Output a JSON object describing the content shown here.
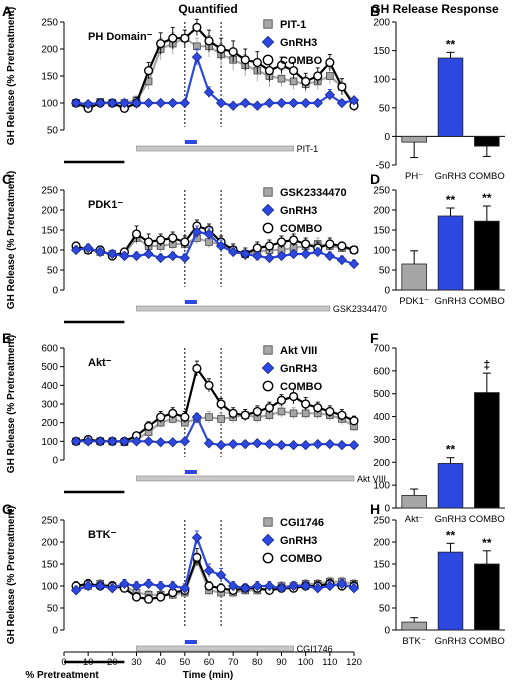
{
  "header": {
    "left_title": "Quantified",
    "right_title": "GH Release Response"
  },
  "shared": {
    "ylabel": "GH Release (% Pretreatment)",
    "xlabel": "Time (min)",
    "pretreatment_label": "% Pretreatment",
    "dotted_lines_min": [
      50,
      65
    ],
    "colors": {
      "gray": "#a6a6a6",
      "blue": "#2d48e0",
      "black": "#000000",
      "white": "#ffffff"
    }
  },
  "chart_data": [
    {
      "panel": "A",
      "type": "line",
      "inset_label": "PH Domain⁻",
      "xlim": [
        0,
        120
      ],
      "ylim": [
        50,
        250
      ],
      "yticks": [
        50,
        100,
        150,
        200,
        250
      ],
      "xticks": [
        0,
        10,
        20,
        30,
        40,
        50,
        60,
        70,
        80,
        90,
        100,
        110,
        120
      ],
      "x": [
        5,
        10,
        15,
        20,
        25,
        30,
        35,
        40,
        45,
        50,
        55,
        60,
        65,
        70,
        75,
        80,
        85,
        90,
        95,
        100,
        105,
        110,
        115,
        120
      ],
      "series": [
        {
          "name": "PIT-1",
          "marker": "square",
          "values": [
            100,
            95,
            102,
            100,
            100,
            105,
            140,
            200,
            210,
            220,
            205,
            205,
            190,
            180,
            170,
            160,
            150,
            145,
            140,
            135,
            140,
            150,
            130,
            100
          ],
          "err": [
            5,
            5,
            5,
            5,
            5,
            8,
            15,
            20,
            20,
            15,
            15,
            20,
            20,
            20,
            20,
            20,
            20,
            15,
            15,
            15,
            15,
            15,
            15,
            10
          ]
        },
        {
          "name": "GnRH3",
          "marker": "diamond",
          "values": [
            100,
            98,
            100,
            100,
            100,
            100,
            100,
            100,
            100,
            100,
            185,
            120,
            100,
            95,
            100,
            95,
            100,
            100,
            100,
            100,
            100,
            115,
            100,
            105
          ],
          "err": [
            5,
            5,
            5,
            5,
            5,
            5,
            5,
            5,
            5,
            5,
            15,
            10,
            5,
            5,
            5,
            5,
            5,
            5,
            5,
            5,
            5,
            10,
            5,
            5
          ]
        },
        {
          "name": "COMBO",
          "marker": "circle",
          "values": [
            100,
            90,
            100,
            100,
            90,
            100,
            160,
            210,
            220,
            220,
            240,
            215,
            200,
            195,
            180,
            175,
            160,
            170,
            160,
            140,
            150,
            175,
            130,
            95
          ],
          "err": [
            5,
            5,
            5,
            5,
            5,
            10,
            15,
            20,
            20,
            15,
            15,
            20,
            20,
            20,
            20,
            20,
            20,
            15,
            15,
            15,
            15,
            15,
            15,
            10
          ]
        }
      ],
      "bar_label": "PIT-1",
      "bar_range": [
        30,
        95
      ],
      "blue_bar_range": [
        50,
        55
      ]
    },
    {
      "panel": "C",
      "type": "line",
      "inset_label": "PDK1⁻",
      "xlim": [
        0,
        120
      ],
      "ylim": [
        0,
        250
      ],
      "yticks": [
        0,
        50,
        100,
        150,
        200,
        250
      ],
      "xticks": [
        0,
        10,
        20,
        30,
        40,
        50,
        60,
        70,
        80,
        90,
        100,
        110,
        120
      ],
      "x": [
        5,
        10,
        15,
        20,
        25,
        30,
        35,
        40,
        45,
        50,
        55,
        60,
        65,
        70,
        75,
        80,
        85,
        90,
        95,
        100,
        105,
        110,
        115,
        120
      ],
      "series": [
        {
          "name": "GSK2334470",
          "marker": "square",
          "values": [
            105,
            100,
            95,
            90,
            90,
            130,
            110,
            110,
            115,
            115,
            130,
            120,
            115,
            100,
            90,
            95,
            100,
            100,
            105,
            110,
            115,
            110,
            105,
            100
          ],
          "err": [
            10,
            10,
            10,
            10,
            10,
            15,
            15,
            15,
            15,
            15,
            15,
            15,
            15,
            15,
            10,
            10,
            10,
            10,
            10,
            15,
            15,
            15,
            10,
            10
          ]
        },
        {
          "name": "GnRH3",
          "marker": "diamond",
          "values": [
            100,
            105,
            95,
            90,
            85,
            85,
            90,
            80,
            85,
            80,
            145,
            140,
            110,
            95,
            90,
            85,
            80,
            85,
            90,
            90,
            95,
            85,
            75,
            65
          ],
          "err": [
            10,
            10,
            10,
            10,
            10,
            10,
            10,
            10,
            10,
            10,
            15,
            15,
            15,
            10,
            10,
            10,
            10,
            10,
            10,
            10,
            10,
            10,
            10,
            10
          ]
        },
        {
          "name": "COMBO",
          "marker": "circle",
          "values": [
            110,
            100,
            100,
            85,
            95,
            140,
            120,
            125,
            130,
            120,
            160,
            150,
            120,
            100,
            90,
            105,
            110,
            120,
            125,
            115,
            105,
            115,
            110,
            100
          ],
          "err": [
            10,
            10,
            10,
            10,
            10,
            20,
            20,
            15,
            15,
            15,
            15,
            15,
            15,
            15,
            15,
            15,
            15,
            15,
            15,
            15,
            15,
            15,
            10,
            10
          ]
        }
      ],
      "bar_label": "GSK2334470",
      "bar_range": [
        30,
        110
      ],
      "blue_bar_range": [
        50,
        55
      ]
    },
    {
      "panel": "E",
      "type": "line",
      "inset_label": "Akt⁻",
      "xlim": [
        0,
        120
      ],
      "ylim": [
        0,
        600
      ],
      "yticks": [
        0,
        100,
        200,
        300,
        400,
        500,
        600
      ],
      "xticks": [
        0,
        10,
        20,
        30,
        40,
        50,
        60,
        70,
        80,
        90,
        100,
        110,
        120
      ],
      "x": [
        5,
        10,
        15,
        20,
        25,
        30,
        35,
        40,
        45,
        50,
        55,
        60,
        65,
        70,
        75,
        80,
        85,
        90,
        95,
        100,
        105,
        110,
        115,
        120
      ],
      "series": [
        {
          "name": "Akt VIII",
          "marker": "square",
          "values": [
            100,
            105,
            100,
            100,
            95,
            110,
            150,
            200,
            220,
            200,
            220,
            230,
            220,
            230,
            240,
            230,
            240,
            260,
            250,
            250,
            250,
            240,
            220,
            180
          ],
          "err": [
            10,
            10,
            10,
            10,
            10,
            15,
            20,
            25,
            25,
            25,
            25,
            30,
            30,
            30,
            30,
            30,
            30,
            30,
            30,
            30,
            30,
            30,
            30,
            25
          ]
        },
        {
          "name": "GnRH3",
          "marker": "diamond",
          "values": [
            100,
            100,
            100,
            100,
            100,
            100,
            100,
            95,
            95,
            100,
            230,
            90,
            80,
            85,
            85,
            90,
            85,
            80,
            80,
            80,
            85,
            85,
            80,
            80
          ],
          "err": [
            10,
            10,
            10,
            10,
            10,
            10,
            10,
            10,
            10,
            10,
            20,
            10,
            10,
            10,
            10,
            10,
            10,
            10,
            10,
            10,
            10,
            10,
            10,
            10
          ]
        },
        {
          "name": "COMBO",
          "marker": "circle",
          "values": [
            100,
            110,
            100,
            100,
            100,
            130,
            180,
            230,
            250,
            230,
            490,
            400,
            300,
            250,
            240,
            260,
            280,
            320,
            340,
            300,
            280,
            260,
            240,
            210
          ],
          "err": [
            10,
            10,
            10,
            10,
            10,
            15,
            25,
            30,
            30,
            30,
            40,
            35,
            30,
            30,
            30,
            30,
            30,
            30,
            40,
            35,
            30,
            30,
            30,
            25
          ]
        }
      ],
      "bar_label": "Akt VIII",
      "bar_range": [
        30,
        120
      ],
      "blue_bar_range": [
        50,
        55
      ]
    },
    {
      "panel": "G",
      "type": "line",
      "inset_label": "BTK⁻",
      "xlim": [
        0,
        120
      ],
      "ylim": [
        0,
        250
      ],
      "yticks": [
        0,
        50,
        100,
        150,
        200,
        250
      ],
      "xticks": [
        0,
        10,
        20,
        30,
        40,
        50,
        60,
        70,
        80,
        90,
        100,
        110,
        120
      ],
      "x": [
        5,
        10,
        15,
        20,
        25,
        30,
        35,
        40,
        45,
        50,
        55,
        60,
        65,
        70,
        75,
        80,
        85,
        90,
        95,
        100,
        105,
        110,
        115,
        120
      ],
      "series": [
        {
          "name": "CGI1746",
          "marker": "square",
          "values": [
            95,
            100,
            105,
            100,
            100,
            85,
            80,
            80,
            80,
            85,
            160,
            90,
            85,
            85,
            90,
            90,
            95,
            100,
            100,
            105,
            105,
            110,
            110,
            105
          ],
          "err": [
            10,
            10,
            10,
            10,
            10,
            10,
            10,
            10,
            10,
            10,
            15,
            10,
            10,
            10,
            10,
            10,
            10,
            10,
            10,
            10,
            10,
            10,
            10,
            10
          ]
        },
        {
          "name": "GnRH3",
          "marker": "diamond",
          "values": [
            90,
            100,
            100,
            95,
            105,
            100,
            105,
            100,
            100,
            95,
            210,
            135,
            125,
            100,
            95,
            100,
            100,
            95,
            100,
            100,
            95,
            100,
            105,
            95
          ],
          "err": [
            10,
            10,
            10,
            10,
            10,
            10,
            10,
            10,
            10,
            10,
            15,
            15,
            15,
            10,
            10,
            10,
            10,
            10,
            10,
            10,
            10,
            10,
            10,
            10
          ]
        },
        {
          "name": "COMBO",
          "marker": "circle",
          "values": [
            100,
            105,
            100,
            100,
            95,
            75,
            70,
            75,
            85,
            90,
            165,
            100,
            95,
            90,
            95,
            95,
            90,
            95,
            95,
            100,
            100,
            105,
            100,
            100
          ],
          "err": [
            10,
            10,
            10,
            10,
            10,
            10,
            10,
            10,
            10,
            10,
            20,
            10,
            10,
            10,
            10,
            10,
            10,
            10,
            10,
            10,
            10,
            10,
            10,
            10
          ]
        }
      ],
      "bar_label": "CGI1746",
      "bar_range": [
        30,
        95
      ],
      "blue_bar_range": [
        50,
        55
      ]
    },
    {
      "panel": "B",
      "type": "bar",
      "ylim": [
        -50,
        200
      ],
      "yticks": [
        -50,
        0,
        50,
        100,
        150,
        200
      ],
      "categories": [
        "PH⁻",
        "GnRH3",
        "COMBO"
      ],
      "values": [
        -10,
        137,
        -17
      ],
      "err": [
        27,
        10,
        18
      ],
      "colors": [
        "gray",
        "blue",
        "black"
      ],
      "annotations": [
        "",
        "**",
        ""
      ]
    },
    {
      "panel": "D",
      "type": "bar",
      "ylim": [
        0,
        250
      ],
      "yticks": [
        0,
        50,
        100,
        150,
        200,
        250
      ],
      "categories": [
        "PDK1⁻",
        "GnRH3",
        "COMBO"
      ],
      "values": [
        65,
        185,
        172
      ],
      "err": [
        33,
        20,
        38
      ],
      "colors": [
        "gray",
        "blue",
        "black"
      ],
      "annotations": [
        "",
        "**",
        "**"
      ]
    },
    {
      "panel": "F",
      "type": "bar",
      "ylim": [
        0,
        700
      ],
      "yticks": [
        0,
        100,
        200,
        300,
        400,
        500,
        600,
        700
      ],
      "categories": [
        "Akt⁻",
        "GnRH3",
        "COMBO"
      ],
      "values": [
        55,
        195,
        505
      ],
      "err": [
        28,
        25,
        85
      ],
      "colors": [
        "gray",
        "blue",
        "black"
      ],
      "annotations": [
        "",
        "**",
        "‡"
      ]
    },
    {
      "panel": "H",
      "type": "bar",
      "ylim": [
        0,
        250
      ],
      "yticks": [
        0,
        50,
        100,
        150,
        200,
        250
      ],
      "categories": [
        "BTK⁻",
        "GnRH3",
        "COMBO"
      ],
      "values": [
        18,
        177,
        150
      ],
      "err": [
        10,
        20,
        30
      ],
      "colors": [
        "gray",
        "blue",
        "black"
      ],
      "annotations": [
        "",
        "**",
        "**"
      ]
    }
  ]
}
